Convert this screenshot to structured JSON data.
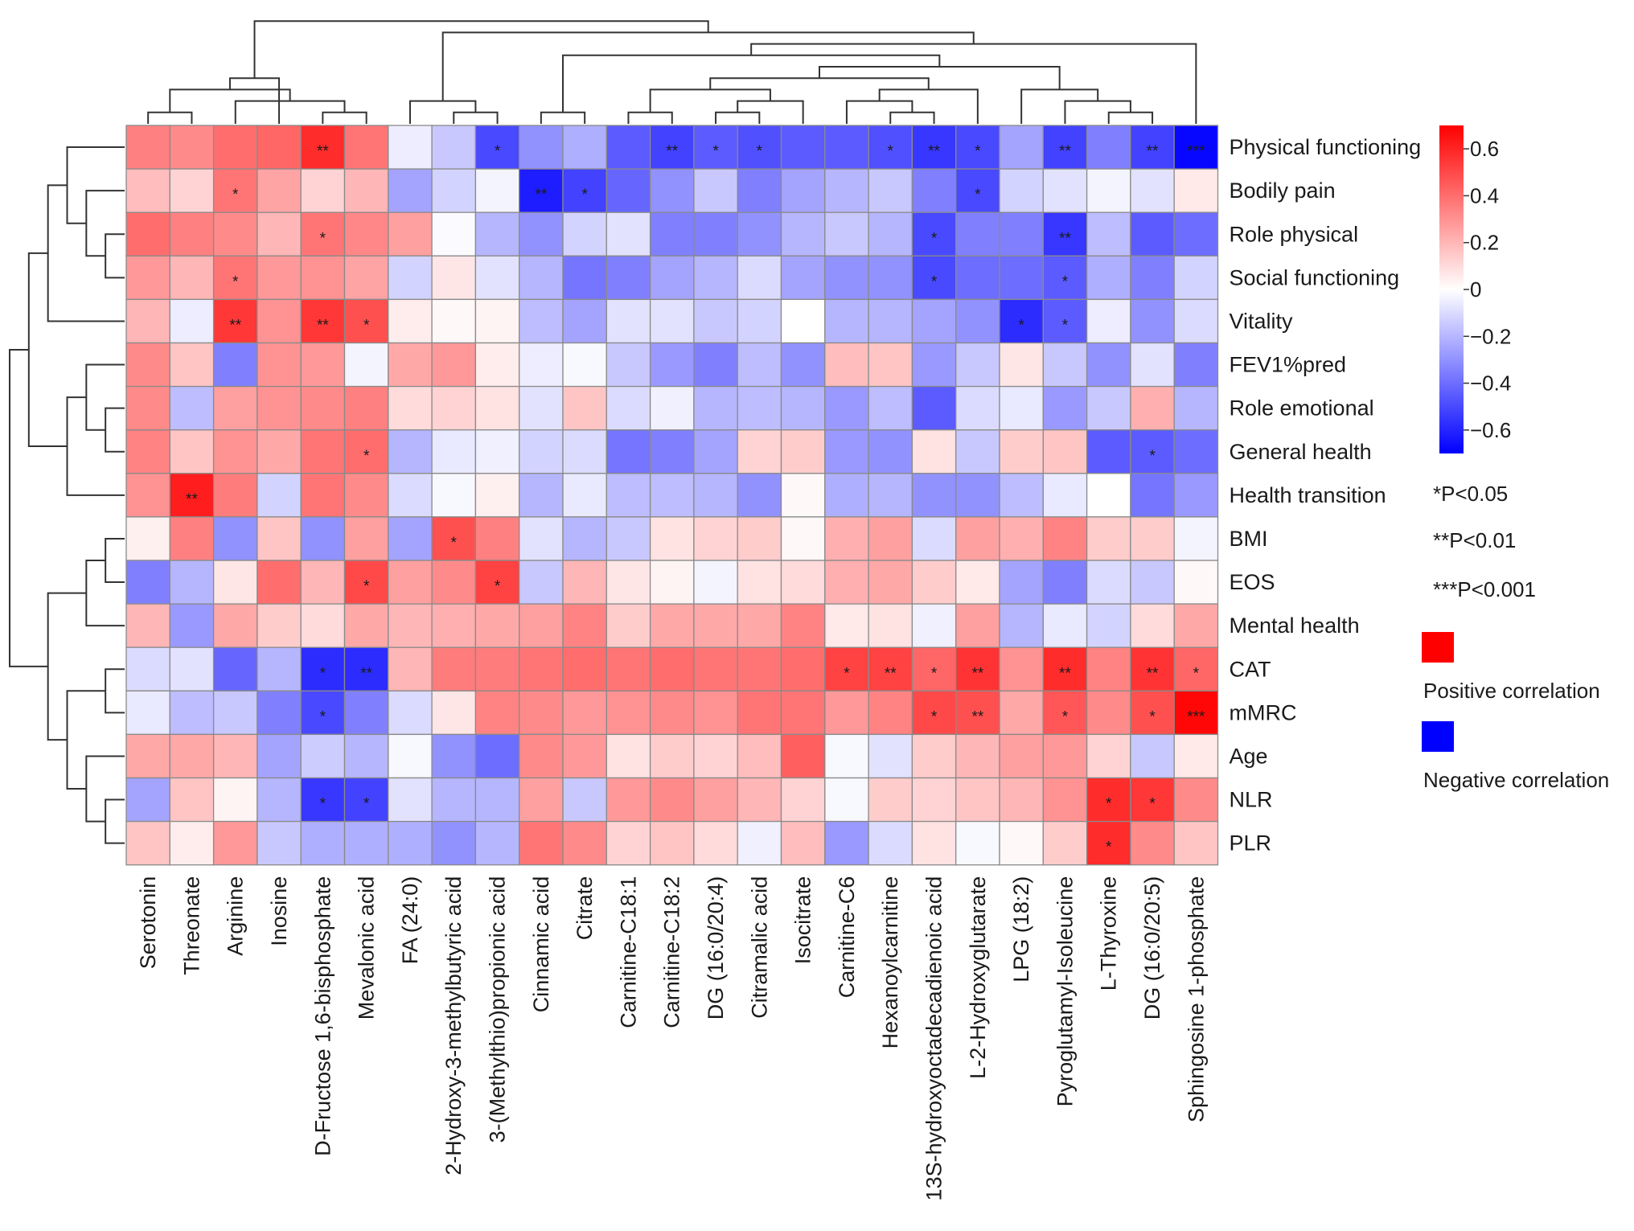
{
  "chart_data": {
    "type": "heatmap",
    "title": "",
    "rows": [
      "Physical functioning",
      "Bodily pain",
      "Role physical",
      "Social functioning",
      "Vitality",
      "FEV1%pred",
      "Role emotional",
      "General health",
      "Health transition",
      "BMI",
      "EOS",
      "Mental health",
      "CAT",
      "mMRC",
      "Age",
      "NLR",
      "PLR"
    ],
    "columns": [
      "Serotonin",
      "Threonate",
      "Arginine",
      "Inosine",
      "D-Fructose 1,6-bisphosphate",
      "Mevalonic acid",
      "FA (24:0)",
      "2-Hydroxy-3-methylbutyric acid",
      "3-(Methylthio)propionic acid",
      "Cinnamic acid",
      "Citrate",
      "Carnitine-C18:1",
      "Carnitine-C18:2",
      "DG (16:0/20:4)",
      "Citramalic acid",
      "Isocitrate",
      "Carnitine-C6",
      "Hexanoylcarnitine",
      "13S-hydroxyoctadecadienoic acid",
      "L-2-Hydroxyglutarate",
      "LPG (18:2)",
      "Pyroglutamyl-Isoleucine",
      "L-Thyroxine",
      "DG (16:0/20:5)",
      "Sphingosine 1-phosphate"
    ],
    "values": [
      [
        0.35,
        0.32,
        0.4,
        0.42,
        0.58,
        0.38,
        -0.05,
        -0.15,
        -0.5,
        -0.3,
        -0.22,
        -0.45,
        -0.52,
        -0.45,
        -0.48,
        -0.45,
        -0.45,
        -0.48,
        -0.55,
        -0.5,
        -0.25,
        -0.52,
        -0.35,
        -0.52,
        -0.68
      ],
      [
        0.18,
        0.12,
        0.38,
        0.25,
        0.12,
        0.2,
        -0.25,
        -0.12,
        -0.03,
        -0.62,
        -0.52,
        -0.42,
        -0.3,
        -0.15,
        -0.35,
        -0.25,
        -0.2,
        -0.15,
        -0.35,
        -0.5,
        -0.12,
        -0.08,
        -0.03,
        -0.08,
        0.06
      ],
      [
        0.4,
        0.35,
        0.32,
        0.2,
        0.38,
        0.33,
        0.26,
        -0.01,
        -0.2,
        -0.3,
        -0.12,
        -0.08,
        -0.35,
        -0.35,
        -0.3,
        -0.2,
        -0.15,
        -0.2,
        -0.5,
        -0.35,
        -0.35,
        -0.55,
        -0.18,
        -0.45,
        -0.4
      ],
      [
        0.28,
        0.2,
        0.38,
        0.28,
        0.3,
        0.25,
        -0.12,
        0.07,
        -0.08,
        -0.2,
        -0.38,
        -0.35,
        -0.25,
        -0.2,
        -0.1,
        -0.25,
        -0.3,
        -0.3,
        -0.5,
        -0.4,
        -0.4,
        -0.45,
        -0.22,
        -0.35,
        -0.12
      ],
      [
        0.2,
        -0.05,
        0.55,
        0.3,
        0.55,
        0.48,
        0.05,
        0.02,
        0.03,
        -0.18,
        -0.25,
        -0.08,
        -0.08,
        -0.15,
        -0.12,
        0.0,
        -0.2,
        -0.2,
        -0.25,
        -0.3,
        -0.58,
        -0.45,
        -0.05,
        -0.3,
        -0.1
      ],
      [
        0.32,
        0.16,
        -0.35,
        0.3,
        0.28,
        -0.03,
        0.24,
        0.28,
        0.05,
        -0.05,
        -0.02,
        -0.15,
        -0.28,
        -0.35,
        -0.18,
        -0.3,
        0.18,
        0.16,
        -0.28,
        -0.15,
        0.07,
        -0.15,
        -0.3,
        -0.08,
        -0.35
      ],
      [
        0.32,
        -0.18,
        0.26,
        0.3,
        0.32,
        0.35,
        0.1,
        0.12,
        0.08,
        -0.08,
        0.16,
        -0.1,
        -0.04,
        -0.2,
        -0.18,
        -0.2,
        -0.28,
        -0.18,
        -0.45,
        -0.1,
        -0.06,
        -0.28,
        -0.15,
        0.22,
        -0.2
      ],
      [
        0.34,
        0.16,
        0.3,
        0.24,
        0.38,
        0.4,
        -0.2,
        -0.06,
        -0.04,
        -0.12,
        -0.1,
        -0.38,
        -0.35,
        -0.25,
        0.12,
        0.14,
        -0.28,
        -0.3,
        0.08,
        -0.15,
        0.14,
        0.16,
        -0.45,
        -0.45,
        -0.4
      ],
      [
        0.3,
        0.62,
        0.36,
        -0.12,
        0.38,
        0.32,
        -0.1,
        -0.02,
        0.04,
        -0.2,
        -0.06,
        -0.18,
        -0.18,
        -0.2,
        -0.3,
        0.02,
        -0.22,
        -0.2,
        -0.3,
        -0.3,
        -0.18,
        -0.06,
        0.0,
        -0.38,
        -0.28
      ],
      [
        0.04,
        0.35,
        -0.3,
        0.16,
        -0.3,
        0.26,
        -0.25,
        0.48,
        0.35,
        -0.08,
        -0.2,
        -0.15,
        0.08,
        0.12,
        0.14,
        0.02,
        0.22,
        0.26,
        -0.1,
        0.26,
        0.22,
        0.34,
        0.14,
        0.14,
        -0.03
      ],
      [
        -0.35,
        -0.2,
        0.07,
        0.4,
        0.2,
        0.5,
        0.26,
        0.32,
        0.52,
        -0.15,
        0.2,
        0.07,
        0.03,
        -0.03,
        0.08,
        0.1,
        0.22,
        0.24,
        0.14,
        0.06,
        -0.25,
        -0.35,
        -0.1,
        -0.15,
        0.02
      ],
      [
        0.2,
        -0.28,
        0.24,
        0.14,
        0.1,
        0.24,
        0.2,
        0.22,
        0.24,
        0.26,
        0.34,
        0.14,
        0.24,
        0.24,
        0.24,
        0.34,
        0.06,
        0.08,
        -0.04,
        0.26,
        -0.2,
        -0.06,
        -0.12,
        0.1,
        0.24
      ],
      [
        -0.1,
        -0.08,
        -0.42,
        -0.2,
        -0.58,
        -0.58,
        0.2,
        0.36,
        0.36,
        0.38,
        0.4,
        0.38,
        0.4,
        0.38,
        0.38,
        0.4,
        0.52,
        0.52,
        0.42,
        0.56,
        0.3,
        0.58,
        0.34,
        0.56,
        0.42
      ],
      [
        -0.06,
        -0.18,
        -0.15,
        -0.35,
        -0.5,
        -0.35,
        -0.1,
        0.07,
        0.34,
        0.32,
        0.28,
        0.3,
        0.32,
        0.3,
        0.38,
        0.38,
        0.28,
        0.34,
        0.5,
        0.48,
        0.24,
        0.46,
        0.32,
        0.48,
        0.68
      ],
      [
        0.24,
        0.24,
        0.2,
        -0.25,
        -0.14,
        -0.2,
        -0.02,
        -0.3,
        -0.4,
        0.32,
        0.28,
        0.08,
        0.14,
        0.12,
        0.18,
        0.44,
        -0.02,
        -0.08,
        0.14,
        0.2,
        0.26,
        0.28,
        0.12,
        -0.15,
        0.06
      ],
      [
        -0.25,
        0.16,
        0.03,
        -0.2,
        -0.55,
        -0.52,
        -0.08,
        -0.2,
        -0.2,
        0.26,
        -0.15,
        0.28,
        0.32,
        0.26,
        0.2,
        0.12,
        -0.02,
        0.14,
        0.12,
        0.16,
        0.2,
        0.3,
        0.58,
        0.55,
        0.32
      ],
      [
        0.16,
        0.05,
        0.28,
        -0.15,
        -0.22,
        -0.22,
        -0.22,
        -0.3,
        -0.2,
        0.38,
        0.32,
        0.12,
        0.16,
        0.1,
        -0.04,
        0.18,
        -0.28,
        -0.1,
        0.08,
        -0.02,
        0.02,
        0.14,
        0.58,
        0.32,
        0.16
      ]
    ],
    "significance": [
      [
        "",
        "",
        "",
        "",
        "**",
        "",
        "",
        "",
        "*",
        "",
        "",
        "",
        "**",
        "*",
        "*",
        "",
        "",
        "*",
        "**",
        "*",
        "",
        "**",
        "",
        "**",
        "***"
      ],
      [
        "",
        "",
        "*",
        "",
        "",
        "",
        "",
        "",
        "",
        "**",
        "*",
        "",
        "",
        "",
        "",
        "",
        "",
        "",
        "",
        "*",
        "",
        "",
        "",
        "",
        ""
      ],
      [
        "",
        "",
        "",
        "",
        "*",
        "",
        "",
        "",
        "",
        "",
        "",
        "",
        "",
        "",
        "",
        "",
        "",
        "",
        "*",
        "",
        "",
        "**",
        "",
        "",
        ""
      ],
      [
        "",
        "",
        "*",
        "",
        "",
        "",
        "",
        "",
        "",
        "",
        "",
        "",
        "",
        "",
        "",
        "",
        "",
        "",
        "*",
        "",
        "",
        "*",
        "",
        "",
        ""
      ],
      [
        "",
        "",
        "**",
        "",
        "**",
        "*",
        "",
        "",
        "",
        "",
        "",
        "",
        "",
        "",
        "",
        "",
        "",
        "",
        "",
        "",
        "*",
        "*",
        "",
        "",
        ""
      ],
      [
        "",
        "",
        "",
        "",
        "",
        "",
        "",
        "",
        "",
        "",
        "",
        "",
        "",
        "",
        "",
        "",
        "",
        "",
        "",
        "",
        "",
        "",
        "",
        "",
        ""
      ],
      [
        "",
        "",
        "",
        "",
        "",
        "",
        "",
        "",
        "",
        "",
        "",
        "",
        "",
        "",
        "",
        "",
        "",
        "",
        "",
        "",
        "",
        "",
        "",
        "",
        ""
      ],
      [
        "",
        "",
        "",
        "",
        "",
        "*",
        "",
        "",
        "",
        "",
        "",
        "",
        "",
        "",
        "",
        "",
        "",
        "",
        "",
        "",
        "",
        "",
        "",
        "*",
        ""
      ],
      [
        "",
        "**",
        "",
        "",
        "",
        "",
        "",
        "",
        "",
        "",
        "",
        "",
        "",
        "",
        "",
        "",
        "",
        "",
        "",
        "",
        "",
        "",
        "",
        "",
        ""
      ],
      [
        "",
        "",
        "",
        "",
        "",
        "",
        "",
        "*",
        "",
        "",
        "",
        "",
        "",
        "",
        "",
        "",
        "",
        "",
        "",
        "",
        "",
        "",
        "",
        "",
        ""
      ],
      [
        "",
        "",
        "",
        "",
        "",
        "*",
        "",
        "",
        "*",
        "",
        "",
        "",
        "",
        "",
        "",
        "",
        "",
        "",
        "",
        "",
        "",
        "",
        "",
        "",
        ""
      ],
      [
        "",
        "",
        "",
        "",
        "",
        "",
        "",
        "",
        "",
        "",
        "",
        "",
        "",
        "",
        "",
        "",
        "",
        "",
        "",
        "",
        "",
        "",
        "",
        "",
        ""
      ],
      [
        "",
        "",
        "",
        "",
        "*",
        "**",
        "",
        "",
        "",
        "",
        "",
        "",
        "",
        "",
        "",
        "",
        "*",
        "**",
        "*",
        "**",
        "",
        "**",
        "",
        "**",
        "*"
      ],
      [
        "",
        "",
        "",
        "",
        "*",
        "",
        "",
        "",
        "",
        "",
        "",
        "",
        "",
        "",
        "",
        "",
        "",
        "",
        "*",
        "**",
        "",
        "*",
        "",
        "*",
        "***"
      ],
      [
        "",
        "",
        "",
        "",
        "",
        "",
        "",
        "",
        "",
        "",
        "",
        "",
        "",
        "",
        "",
        "",
        "",
        "",
        "",
        "",
        "",
        "",
        "",
        "",
        ""
      ],
      [
        "",
        "",
        "",
        "",
        "*",
        "*",
        "",
        "",
        "",
        "",
        "",
        "",
        "",
        "",
        "",
        "",
        "",
        "",
        "",
        "",
        "",
        "",
        "*",
        "*",
        ""
      ],
      [
        "",
        "",
        "",
        "",
        "",
        "",
        "",
        "",
        "",
        "",
        "",
        "",
        "",
        "",
        "",
        "",
        "",
        "",
        "",
        "",
        "",
        "",
        "*",
        "",
        ""
      ]
    ],
    "color_scale": {
      "range": [
        -0.7,
        0.7
      ],
      "low": "#0000ff",
      "mid": "#ffffff",
      "high": "#ff0000",
      "ticks": [
        0.6,
        0.4,
        0.2,
        0,
        -0.2,
        -0.4,
        -0.6
      ],
      "tick_labels": [
        "0.6",
        "0.4",
        "0.2",
        "0",
        "−0.2",
        "−0.4",
        "−0.6"
      ]
    },
    "significance_legend": [
      "*P<0.05",
      "**P<0.01",
      "***P<0.001"
    ],
    "correlation_legend": [
      {
        "label": "Positive correlation",
        "color": "#ff0000"
      },
      {
        "label": "Negative correlation",
        "color": "#0000ff"
      }
    ],
    "dendrograms": [
      "column-top",
      "row-left"
    ]
  }
}
